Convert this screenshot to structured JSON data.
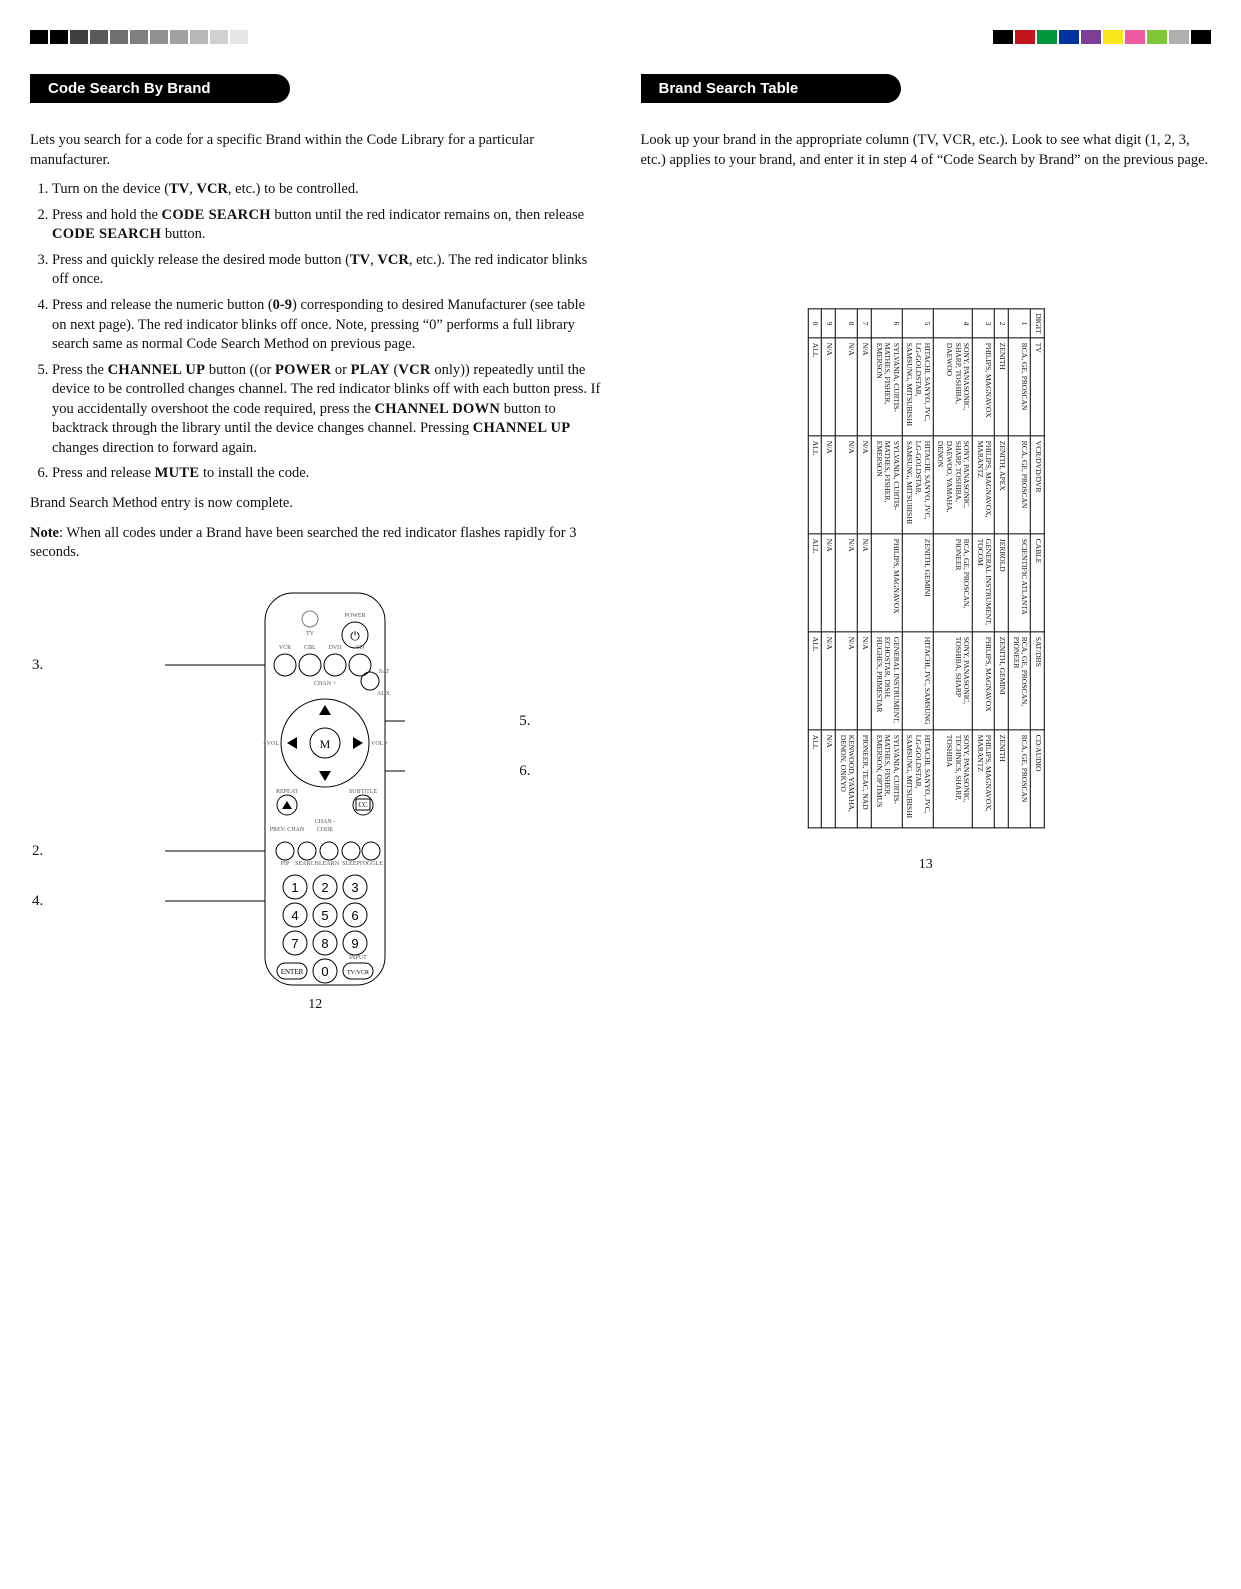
{
  "left": {
    "heading": "Code Search By Brand",
    "intro": "Lets you search for a code for a specific Brand within the Code Library for a particular manufacturer.",
    "steps": [
      "Turn on the device (TV, VCR, etc.) to be controlled.",
      "Press and hold the CODE SEARCH button until the red indicator remains on, then release CODE SEARCH button.",
      "Press and quickly release the desired mode button (TV, VCR, etc.). The red indicator blinks off once.",
      "Press and release the numeric button (0-9) corresponding to desired Manufacturer (see table on next page). The red indicator blinks off once. Note, pressing “0” performs a full library search same as normal Code Search Method on previous page.",
      "Press the CHANNEL UP button ((or POWER or PLAY (VCR only)) repeatedly until the device to be controlled changes channel. The red indicator blinks off with each button press. If you accidentally overshoot the code required, press the CHANNEL DOWN button to backtrack through the library until the device changes channel. Pressing CHANNEL UP changes direction to forward again.",
      "Press and release MUTE to install the code."
    ],
    "complete": "Brand Search Method entry is now complete.",
    "note_label": "Note",
    "note_body": ": When all codes under a Brand have been searched the red indicator flashes rapidly for 3 seconds.",
    "callouts": {
      "c2": "2.",
      "c3": "3.",
      "c4": "4.",
      "c5": "5.",
      "c6": "6."
    },
    "page_num": "12"
  },
  "right": {
    "heading": "Brand Search Table",
    "intro": "Look up your brand in the appropriate column (TV, VCR, etc.). Look to see what digit (1, 2, 3, etc.) applies to your brand, and enter it in step 4 of “Code Search by Brand” on the previous page.",
    "page_num": "13",
    "table": {
      "headers": [
        "DIGIT",
        "TV",
        "VCR/DVD/DVR",
        "CABLE",
        "SAT/DBS",
        "CD/AUDIO"
      ],
      "rows": [
        [
          "1",
          "RCA, GE, PROSCAN",
          "RCA, GE, PROSCAN",
          "SCIENTIFIC ATLANTA",
          "RCA, GE, PROSCAN, PIONEER",
          "RCA, GE, PROSCAN"
        ],
        [
          "2",
          "ZENITH",
          "ZENITH, APEX",
          "JERROLD",
          "ZENITH, GEMINI",
          "ZENITH"
        ],
        [
          "3",
          "PHILIPS, MAGNAVOX",
          "PHILIPS, MAGNAVOX, MARANTZ",
          "GENERAL INSTRUMENT, TOCOM",
          "PHILIPS, MAGNAVOX",
          "PHILIPS, MAGNAVOX, MARANTZ"
        ],
        [
          "4",
          "SONY, PANASONIC, SHARP, TOSHIBA, DAEWOO",
          "SONY, PANASONIC, SHARP, TOSHIBA, DAEWOO, YAMAHA, DENON",
          "RCA, GE, PROSCAN, PIONEER",
          "SONY, PANASONIC, TOSHIBA, SHARP",
          "SONY, PANASONIC, TECHNICS, SHARP, TOSHIBA"
        ],
        [
          "5",
          "HITACHI, SANYO, JVC, LG-GOLDSTAR, SAMSUNG, MITSUBISHI",
          "HITACHI, SANYO, JVC, LG-GOLDSTAR, SAMSUNG, MITSUBISHI",
          "ZENITH, GEMINI",
          "HITACHI, JVC, SAMSUNG",
          "HITACHI, SANYO, JVC, LG-GOLDSTAR, SAMSUNG, MITSUBISHI"
        ],
        [
          "6",
          "SYLVANIA, CURTIS-MATHES, FISHER, EMERSON",
          "SYLVANIA, CURTIS-MATHES, FISHER, EMERSON",
          "PHILIPS, MAGNAVOX",
          "GENERAL INSTRUMENT, ECHOSTAR, DISH, HUGHES, PRIMESTAR",
          "SYLVANIA, CURTIS-MATHES, FISHER, EMERSON, OPTIMUS"
        ],
        [
          "7",
          "N/A",
          "N/A",
          "N/A",
          "N/A",
          "PIONEER, TEAC, NAD"
        ],
        [
          "8",
          "N/A",
          "N/A",
          "N/A",
          "N/A",
          "KENWOOD, YAMAHA, DENON, ONKYO"
        ],
        [
          "9",
          "N/A",
          "N/A",
          "N/A",
          "N/A",
          "N/A"
        ],
        [
          "0",
          "ALL",
          "ALL",
          "ALL",
          "ALL",
          "ALL"
        ]
      ]
    }
  },
  "topbars": {
    "left_colors": [
      "#000",
      "#000",
      "#404040",
      "#5a5a5a",
      "#707070",
      "#808080",
      "#909090",
      "#a0a0a0",
      "#b8b8b8",
      "#d0d0d0",
      "#e6e6e6",
      "#fff",
      "#fff"
    ],
    "right_colors": [
      "#000",
      "#c4151c",
      "#009639",
      "#0033a0",
      "#7d3f98",
      "#f8e71c",
      "#ef5aa0",
      "#7ec636",
      "#b0b0b0",
      "#000"
    ]
  }
}
